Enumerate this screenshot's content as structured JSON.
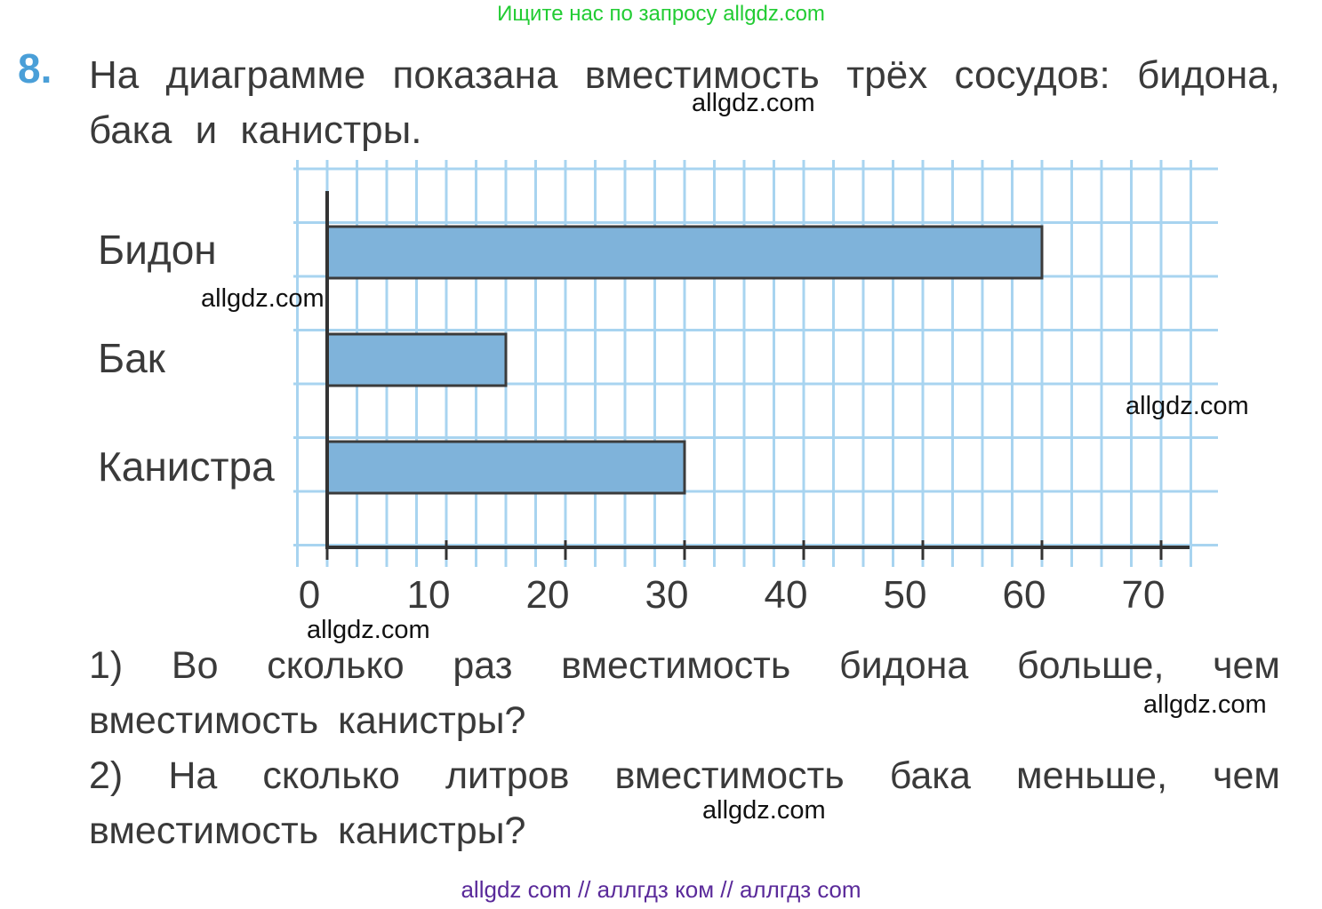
{
  "banner": "Ищите нас по запросу allgdz.com",
  "task": {
    "number": "8.",
    "text": "На диаграмме показана вместимость трёх сосудов: бидона, бака и канистры."
  },
  "chart_data": {
    "type": "bar",
    "orientation": "horizontal",
    "categories": [
      "Бидон",
      "Бак",
      "Канистра"
    ],
    "values": [
      60,
      15,
      30
    ],
    "xlim": [
      0,
      70
    ],
    "x_ticks": [
      "0",
      "10",
      "20",
      "30",
      "40",
      "50",
      "60",
      "70"
    ],
    "grid": true,
    "bar_color": "#7fb3da",
    "grid_color": "#a8d4f0"
  },
  "questions": [
    "1) Во сколько раз вместимость бидона больше, чем вместимость канистры?",
    "2) На сколько литров вместимость бака меньше, чем вместимость канистры?"
  ],
  "watermarks": [
    "allgdz.com",
    "allgdz.com",
    "allgdz.com",
    "allgdz.com",
    "allgdz.com",
    "allgdz.com"
  ],
  "footer": "allgdz com  //  аллгдз ком  //  аллгдз com"
}
